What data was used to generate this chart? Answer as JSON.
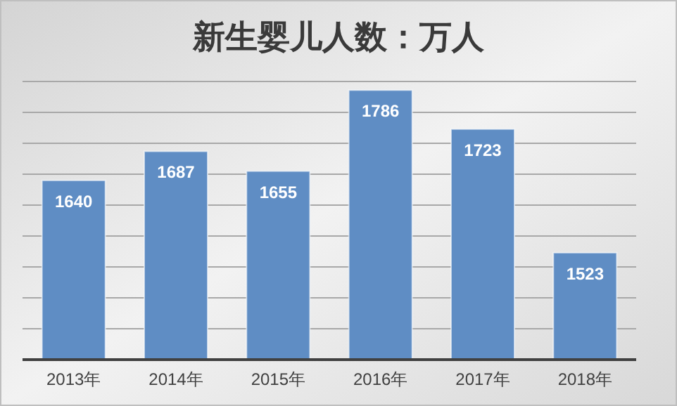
{
  "chart_data": {
    "type": "bar",
    "title": "新生婴儿人数：万人",
    "categories": [
      "2013年",
      "2014年",
      "2015年",
      "2016年",
      "2017年",
      "2018年"
    ],
    "values": [
      1640,
      1687,
      1655,
      1786,
      1723,
      1523
    ],
    "color": "#5f8dc4",
    "ylim": [
      1350,
      1800
    ],
    "yticks": [
      {
        "value": 1350,
        "label": null
      },
      {
        "value": 1400,
        "label": null
      },
      {
        "value": 1450,
        "label": null
      },
      {
        "value": 1500,
        "label": null
      },
      {
        "value": 1550,
        "label": null
      },
      {
        "value": 1600,
        "label": null
      },
      {
        "value": 1650,
        "label": null
      },
      {
        "value": 1700,
        "label": null
      },
      {
        "value": 1750,
        "label": null
      },
      {
        "value": 1800,
        "label": null
      }
    ],
    "grid": "y",
    "data_labels": true
  }
}
